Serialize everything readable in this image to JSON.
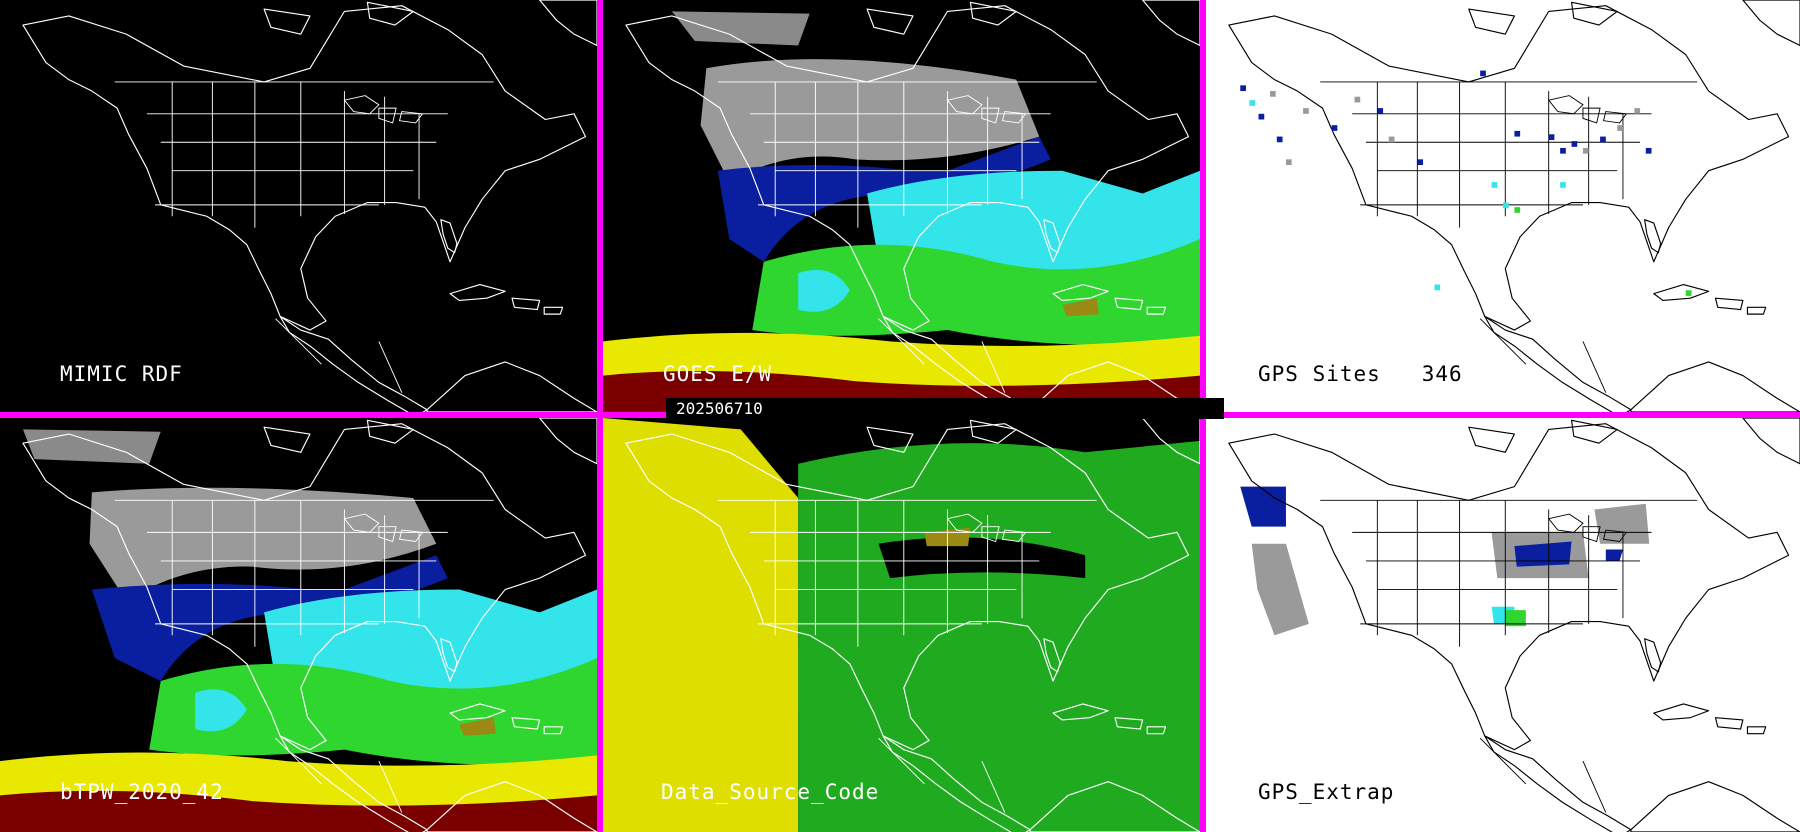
{
  "colors": {
    "divider": "#ff00ff",
    "dark_background": "#000000",
    "light_background": "#ffffff",
    "land_outline_dark": "#ffffff",
    "land_outline_light": "#000000",
    "tpw_gray": "#9a9a9a",
    "tpw_navy": "#0a1ea0",
    "tpw_blue": "#1a3fd8",
    "tpw_cyan": "#33e5ea",
    "tpw_green": "#2fd62f",
    "tpw_yellow": "#e8e800",
    "tpw_olive": "#9a8a14",
    "tpw_darkred": "#7a0000",
    "source_yellow": "#dede00",
    "source_green": "#1faa1f"
  },
  "timestamp": "202506710",
  "panels": [
    {
      "id": "mimic",
      "label": "MIMIC RDF",
      "theme": "dark",
      "overlay": "none"
    },
    {
      "id": "goes",
      "label": "GOES E/W",
      "theme": "dark",
      "overlay": "tpw"
    },
    {
      "id": "gps-sites",
      "label": "GPS Sites   346",
      "theme": "light",
      "overlay": "sites"
    },
    {
      "id": "btpw",
      "label": "bTPW_2020_42",
      "theme": "dark",
      "overlay": "tpw"
    },
    {
      "id": "source",
      "label": "Data_Source_Code",
      "theme": "dark",
      "overlay": "source"
    },
    {
      "id": "gps-extrap",
      "label": "GPS_Extrap",
      "theme": "light",
      "overlay": "extrap"
    }
  ]
}
